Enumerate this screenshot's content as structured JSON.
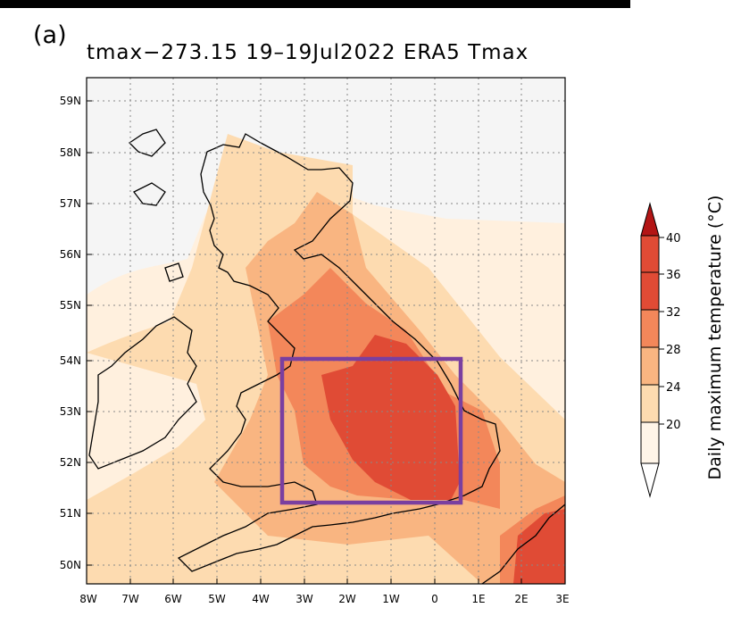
{
  "figure": {
    "panel_label": "(a)",
    "title": "tmax−273.15  19–19Jul2022  ERA5  Tmax"
  },
  "map": {
    "region": "British Isles",
    "lon_labels": [
      "8W",
      "7W",
      "6W",
      "5W",
      "4W",
      "3W",
      "2W",
      "1W",
      "0",
      "1E",
      "2E",
      "3E"
    ],
    "lat_labels": [
      "59N",
      "58N",
      "57N",
      "56N",
      "55N",
      "54N",
      "53N",
      "52N",
      "51N",
      "50N"
    ],
    "highlight_box": {
      "lon_min": -3.5,
      "lon_max": 0.5,
      "lat_min": 51.2,
      "lat_max": 54.0,
      "color": "#7a3fa0"
    },
    "gridlines": "dotted"
  },
  "colorbar": {
    "label": "Daily maximum temperature (°C)",
    "tick_labels": [
      "20",
      "24",
      "28",
      "32",
      "36",
      "40"
    ],
    "level_colors": [
      "#fff5e8",
      "#fddbb0",
      "#f9b581",
      "#f3875a",
      "#e04b35",
      "#b31515"
    ],
    "under_color": "#ffffff"
  }
}
